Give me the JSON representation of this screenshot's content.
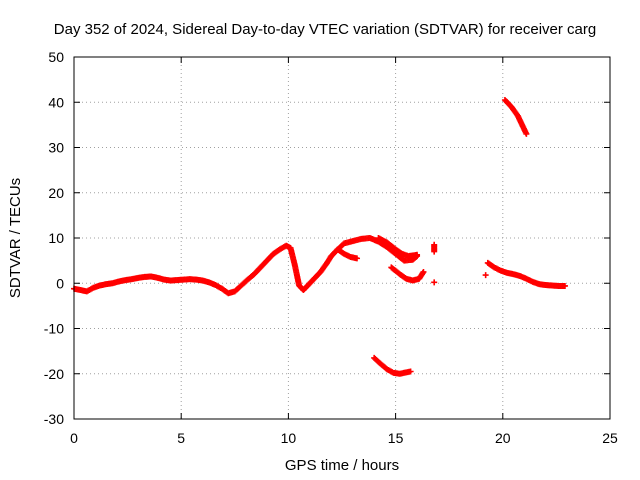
{
  "chart_data": {
    "type": "scatter",
    "title": "Day 352 of 2024, Sidereal Day-to-day VTEC variation (SDTVAR) for receiver carg",
    "xlabel": "GPS time / hours",
    "ylabel": "SDTVAR / TECUs",
    "xlim": [
      0,
      25
    ],
    "ylim": [
      -30,
      50
    ],
    "xticks": [
      0,
      5,
      10,
      15,
      20,
      25
    ],
    "yticks": [
      -30,
      -20,
      -10,
      0,
      10,
      20,
      30,
      40,
      50
    ],
    "grid": true,
    "marker": "+",
    "series_color": "#ff0000",
    "segments": [
      [
        [
          0,
          -1.2
        ],
        [
          0.3,
          -1.5
        ],
        [
          0.6,
          -1.8
        ],
        [
          0.9,
          -1.0
        ],
        [
          1.2,
          -0.5
        ],
        [
          1.5,
          -0.2
        ],
        [
          1.8,
          0.0
        ],
        [
          2.1,
          0.4
        ],
        [
          2.4,
          0.7
        ],
        [
          2.7,
          0.9
        ],
        [
          3.0,
          1.2
        ],
        [
          3.3,
          1.4
        ],
        [
          3.6,
          1.5
        ],
        [
          3.9,
          1.2
        ],
        [
          4.2,
          0.8
        ],
        [
          4.5,
          0.6
        ],
        [
          4.8,
          0.7
        ],
        [
          5.1,
          0.8
        ],
        [
          5.4,
          0.9
        ],
        [
          5.7,
          0.8
        ],
        [
          6.0,
          0.6
        ],
        [
          6.3,
          0.2
        ],
        [
          6.6,
          -0.4
        ],
        [
          6.9,
          -1.2
        ],
        [
          7.2,
          -2.2
        ],
        [
          7.5,
          -1.8
        ],
        [
          7.8,
          -0.5
        ],
        [
          8.1,
          0.8
        ],
        [
          8.4,
          2.0
        ],
        [
          8.7,
          3.5
        ],
        [
          9.0,
          5.0
        ],
        [
          9.3,
          6.5
        ],
        [
          9.6,
          7.5
        ],
        [
          9.9,
          8.3
        ],
        [
          10.1,
          7.8
        ],
        [
          10.3,
          4.0
        ],
        [
          10.5,
          -0.5
        ],
        [
          10.7,
          -1.5
        ],
        [
          10.9,
          -0.5
        ],
        [
          11.2,
          1.0
        ],
        [
          11.5,
          2.5
        ],
        [
          11.8,
          4.5
        ],
        [
          12.0,
          6.0
        ],
        [
          12.3,
          7.5
        ],
        [
          12.6,
          8.8
        ],
        [
          13.0,
          9.3
        ],
        [
          13.4,
          9.8
        ],
        [
          13.8,
          10.0
        ],
        [
          14.2,
          9.2
        ],
        [
          14.6,
          8.0
        ],
        [
          15.0,
          6.5
        ],
        [
          15.4,
          5.0
        ],
        [
          15.8,
          5.2
        ],
        [
          16.0,
          6.0
        ]
      ],
      [
        [
          12.3,
          7.5
        ],
        [
          12.6,
          6.5
        ],
        [
          12.9,
          5.8
        ],
        [
          13.2,
          5.5
        ]
      ],
      [
        [
          14.2,
          10.0
        ],
        [
          14.6,
          9.0
        ],
        [
          15.0,
          7.5
        ],
        [
          15.3,
          6.5
        ],
        [
          15.6,
          6.0
        ],
        [
          15.9,
          6.2
        ],
        [
          16.0,
          6.3
        ]
      ],
      [
        [
          14.8,
          3.5
        ],
        [
          15.2,
          2.0
        ],
        [
          15.5,
          1.0
        ],
        [
          15.8,
          0.6
        ],
        [
          16.1,
          1.0
        ],
        [
          16.3,
          2.5
        ]
      ],
      [
        [
          14.0,
          -16.5
        ],
        [
          14.3,
          -17.8
        ],
        [
          14.6,
          -19.0
        ],
        [
          14.9,
          -19.8
        ],
        [
          15.2,
          -20.0
        ],
        [
          15.5,
          -19.7
        ],
        [
          15.7,
          -19.5
        ]
      ],
      [
        [
          16.8,
          8.5
        ],
        [
          16.8,
          7.0
        ]
      ],
      [
        [
          16.8,
          0.2
        ]
      ],
      [
        [
          19.2,
          1.8
        ]
      ],
      [
        [
          19.3,
          4.5
        ],
        [
          19.6,
          3.5
        ],
        [
          19.9,
          2.8
        ],
        [
          20.2,
          2.3
        ],
        [
          20.5,
          2.0
        ],
        [
          20.8,
          1.6
        ],
        [
          21.1,
          1.0
        ],
        [
          21.4,
          0.3
        ],
        [
          21.7,
          -0.2
        ],
        [
          22.0,
          -0.4
        ],
        [
          22.3,
          -0.5
        ],
        [
          22.6,
          -0.6
        ],
        [
          22.9,
          -0.6
        ]
      ],
      [
        [
          20.1,
          40.5
        ],
        [
          20.4,
          39.0
        ],
        [
          20.7,
          37.0
        ],
        [
          20.9,
          35.0
        ],
        [
          21.1,
          33.0
        ]
      ]
    ]
  }
}
